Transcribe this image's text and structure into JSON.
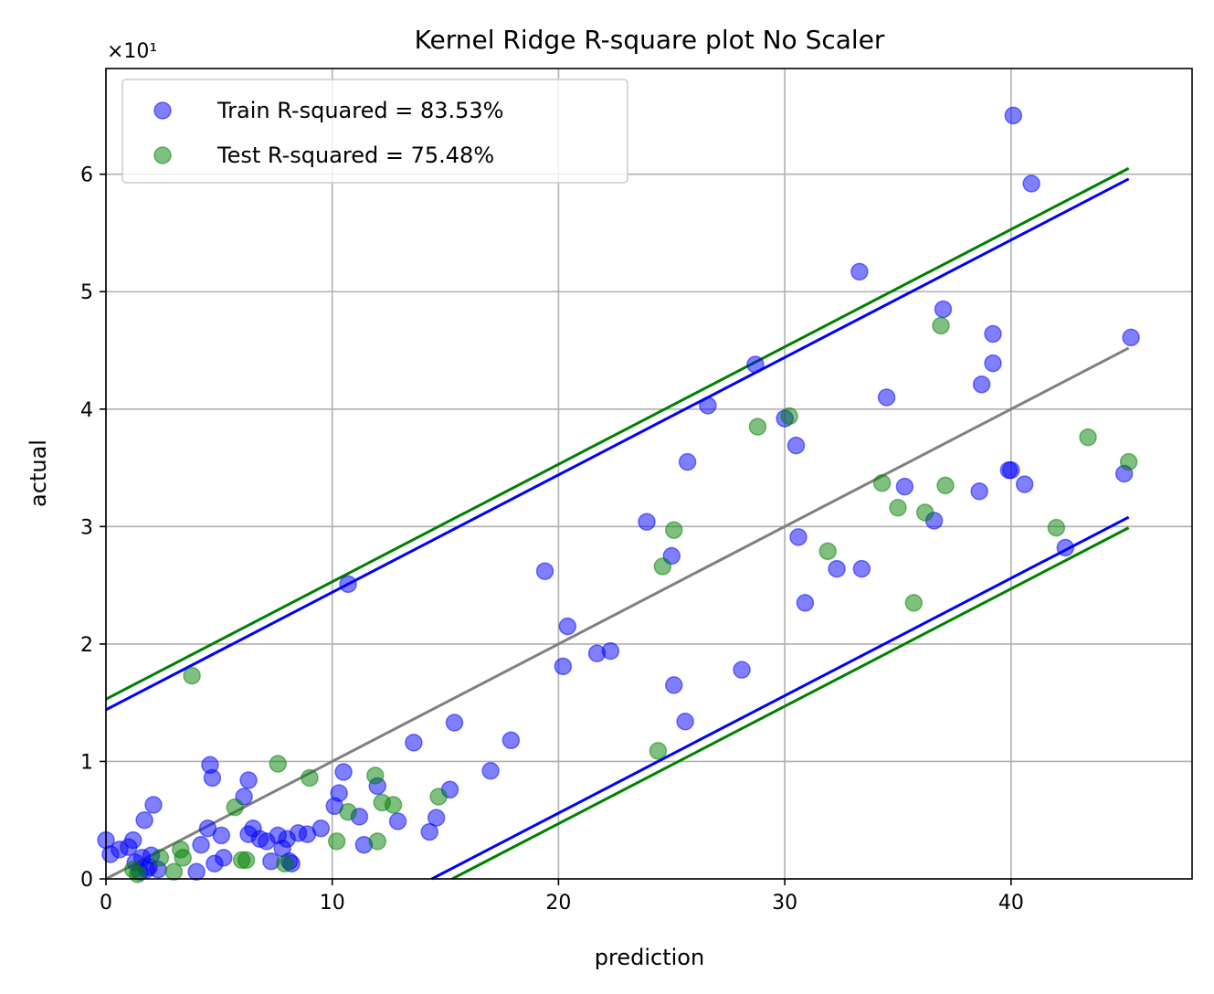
{
  "chart_data": {
    "type": "scatter",
    "title": "Kernel Ridge R-square plot No Scaler",
    "xlabel": "prediction",
    "ylabel": "actual",
    "y_offset_text": "×10¹",
    "xlim": [
      0,
      48
    ],
    "ylim": [
      0,
      69
    ],
    "x_ticks": [
      0,
      10,
      20,
      30,
      40
    ],
    "y_ticks": [
      0,
      10,
      20,
      30,
      40,
      50,
      60
    ],
    "y_tick_labels": [
      "0",
      "1",
      "2",
      "3",
      "4",
      "5",
      "6"
    ],
    "grid": true,
    "legend_position": "top-left",
    "series": [
      {
        "name": "Train R-squared = 83.53%",
        "color": "#0000ff",
        "points": [
          [
            0.0,
            3.3
          ],
          [
            0.2,
            2.1
          ],
          [
            0.6,
            2.5
          ],
          [
            1.0,
            2.7
          ],
          [
            1.2,
            3.3
          ],
          [
            1.3,
            1.4
          ],
          [
            1.5,
            0.6
          ],
          [
            1.6,
            1.8
          ],
          [
            1.7,
            5.0
          ],
          [
            1.8,
            0.8
          ],
          [
            1.9,
            1.0
          ],
          [
            2.0,
            2.0
          ],
          [
            2.1,
            6.3
          ],
          [
            2.3,
            0.8
          ],
          [
            4.0,
            0.6
          ],
          [
            4.2,
            2.9
          ],
          [
            4.5,
            4.3
          ],
          [
            4.6,
            9.7
          ],
          [
            4.7,
            8.6
          ],
          [
            4.8,
            1.3
          ],
          [
            5.1,
            3.7
          ],
          [
            5.2,
            1.8
          ],
          [
            6.1,
            7.0
          ],
          [
            6.3,
            8.4
          ],
          [
            6.3,
            3.8
          ],
          [
            6.5,
            4.3
          ],
          [
            6.8,
            3.4
          ],
          [
            7.1,
            3.2
          ],
          [
            7.3,
            1.5
          ],
          [
            7.6,
            3.7
          ],
          [
            7.8,
            2.6
          ],
          [
            8.0,
            3.4
          ],
          [
            8.1,
            1.5
          ],
          [
            8.2,
            1.3
          ],
          [
            8.5,
            3.9
          ],
          [
            8.9,
            3.8
          ],
          [
            9.5,
            4.3
          ],
          [
            10.1,
            6.2
          ],
          [
            10.3,
            7.3
          ],
          [
            10.5,
            9.1
          ],
          [
            10.7,
            25.1
          ],
          [
            11.2,
            5.3
          ],
          [
            11.4,
            2.9
          ],
          [
            12.0,
            7.9
          ],
          [
            12.9,
            4.9
          ],
          [
            13.6,
            11.6
          ],
          [
            14.3,
            4.0
          ],
          [
            14.6,
            5.2
          ],
          [
            15.2,
            7.6
          ],
          [
            15.4,
            13.3
          ],
          [
            17.0,
            9.2
          ],
          [
            17.9,
            11.8
          ],
          [
            19.4,
            26.2
          ],
          [
            20.2,
            18.1
          ],
          [
            20.4,
            21.5
          ],
          [
            21.7,
            19.2
          ],
          [
            22.3,
            19.4
          ],
          [
            23.9,
            30.4
          ],
          [
            25.0,
            27.5
          ],
          [
            25.1,
            16.5
          ],
          [
            25.6,
            13.4
          ],
          [
            25.7,
            35.5
          ],
          [
            26.6,
            40.3
          ],
          [
            28.1,
            17.8
          ],
          [
            28.7,
            43.8
          ],
          [
            30.0,
            39.2
          ],
          [
            30.5,
            36.9
          ],
          [
            30.6,
            29.1
          ],
          [
            30.9,
            23.5
          ],
          [
            32.3,
            26.4
          ],
          [
            33.3,
            51.7
          ],
          [
            33.4,
            26.4
          ],
          [
            34.5,
            41.0
          ],
          [
            35.3,
            33.4
          ],
          [
            36.6,
            30.5
          ],
          [
            37.0,
            48.5
          ],
          [
            38.6,
            33.0
          ],
          [
            38.7,
            42.1
          ],
          [
            39.2,
            46.4
          ],
          [
            39.2,
            43.9
          ],
          [
            39.9,
            34.8
          ],
          [
            40.0,
            34.8
          ],
          [
            40.1,
            65.0
          ],
          [
            40.6,
            33.6
          ],
          [
            40.9,
            59.2
          ],
          [
            42.4,
            28.2
          ],
          [
            45.0,
            34.5
          ],
          [
            45.3,
            46.1
          ]
        ]
      },
      {
        "name": "Test R-squared = 75.48%",
        "color": "#008000",
        "points": [
          [
            1.2,
            0.8
          ],
          [
            1.4,
            0.4
          ],
          [
            2.4,
            1.8
          ],
          [
            3.0,
            0.6
          ],
          [
            3.3,
            2.5
          ],
          [
            3.4,
            1.8
          ],
          [
            3.8,
            17.3
          ],
          [
            5.7,
            6.1
          ],
          [
            6.0,
            1.6
          ],
          [
            6.2,
            1.6
          ],
          [
            7.6,
            9.8
          ],
          [
            7.9,
            1.3
          ],
          [
            9.0,
            8.6
          ],
          [
            10.2,
            3.2
          ],
          [
            10.7,
            5.7
          ],
          [
            11.9,
            8.8
          ],
          [
            12.0,
            3.2
          ],
          [
            12.2,
            6.5
          ],
          [
            12.7,
            6.3
          ],
          [
            14.7,
            7.0
          ],
          [
            24.4,
            10.9
          ],
          [
            24.6,
            26.6
          ],
          [
            25.1,
            29.7
          ],
          [
            28.8,
            38.5
          ],
          [
            30.2,
            39.4
          ],
          [
            31.9,
            27.9
          ],
          [
            34.3,
            33.7
          ],
          [
            35.0,
            31.6
          ],
          [
            35.7,
            23.5
          ],
          [
            36.2,
            31.2
          ],
          [
            36.9,
            47.1
          ],
          [
            37.1,
            33.5
          ],
          [
            42.0,
            29.9
          ],
          [
            43.4,
            37.6
          ],
          [
            45.2,
            35.5
          ]
        ]
      }
    ],
    "lines": [
      {
        "color": "#0000ff",
        "points": [
          [
            0,
            14.4
          ],
          [
            45.2,
            59.6
          ]
        ]
      },
      {
        "color": "#0000ff",
        "points": [
          [
            14.4,
            0
          ],
          [
            45.2,
            30.8
          ]
        ]
      },
      {
        "color": "#008000",
        "points": [
          [
            0,
            15.3
          ],
          [
            45.2,
            60.5
          ]
        ]
      },
      {
        "color": "#008000",
        "points": [
          [
            15.3,
            0
          ],
          [
            45.2,
            29.9
          ]
        ]
      },
      {
        "color": "#808080",
        "points": [
          [
            0,
            0
          ],
          [
            45.2,
            45.2
          ]
        ]
      }
    ]
  }
}
